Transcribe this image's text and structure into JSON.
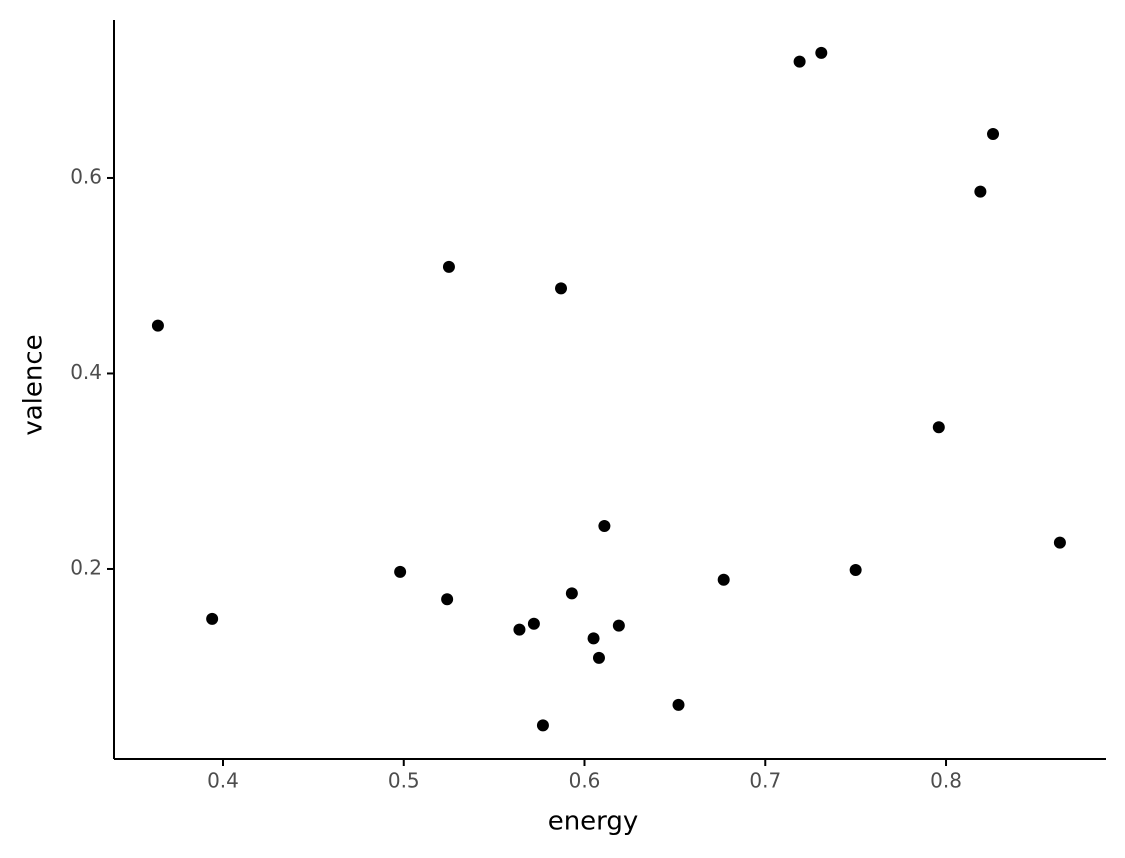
{
  "chart_data": {
    "type": "scatter",
    "x_label": "energy",
    "y_label": "valence",
    "x": [
      0.364,
      0.394,
      0.498,
      0.525,
      0.524,
      0.564,
      0.572,
      0.577,
      0.587,
      0.593,
      0.605,
      0.608,
      0.611,
      0.619,
      0.652,
      0.677,
      0.719,
      0.731,
      0.75,
      0.796,
      0.819,
      0.826,
      0.863
    ],
    "y": [
      0.449,
      0.149,
      0.197,
      0.509,
      0.169,
      0.138,
      0.144,
      0.04,
      0.487,
      0.175,
      0.129,
      0.109,
      0.244,
      0.142,
      0.061,
      0.189,
      0.719,
      0.728,
      0.199,
      0.345,
      0.586,
      0.645,
      0.227
    ],
    "color": "#000000",
    "xlim": [
      0.3397,
      0.8885
    ],
    "ylim": [
      0.0056,
      0.7616
    ],
    "xticks": [
      0.4,
      0.5,
      0.6,
      0.7,
      0.8
    ],
    "yticks": [
      0.2,
      0.4,
      0.6
    ],
    "grid": false
  }
}
